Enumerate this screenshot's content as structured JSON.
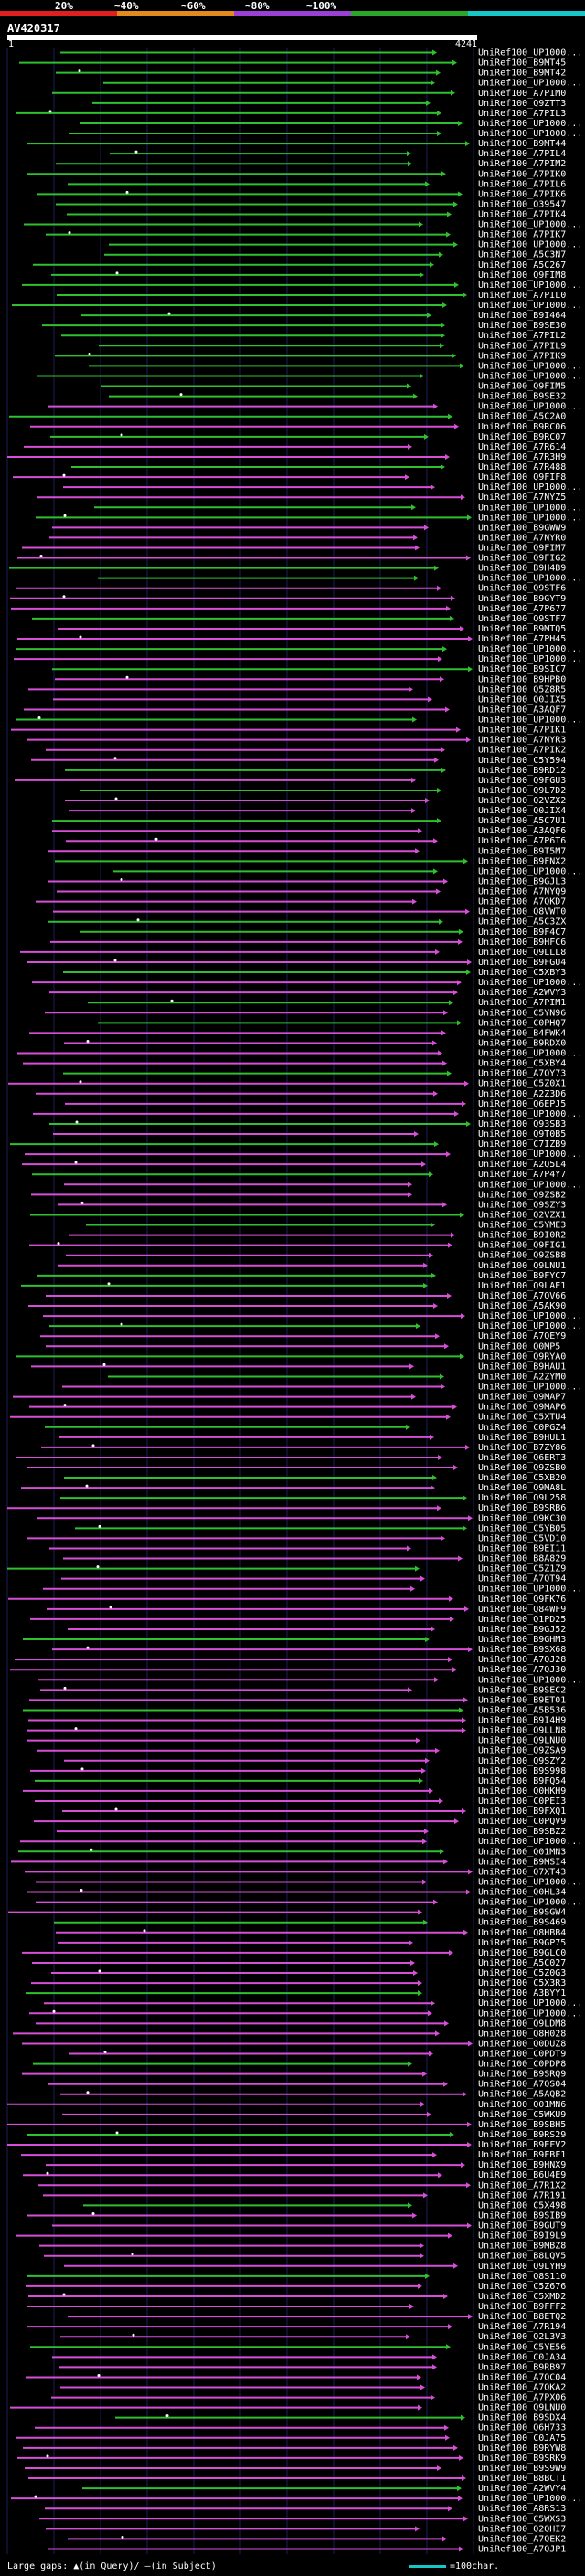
{
  "legend": {
    "labels": [
      "20%",
      "~40%",
      "~60%",
      "~80%",
      "~100%"
    ],
    "colors": [
      "#e11f1f",
      "#e38a1d",
      "#9b3fd5",
      "#2ca52c",
      "#17c6c6"
    ]
  },
  "query": {
    "name": "AV420317",
    "start": "1",
    "end": "4241"
  },
  "colors": {
    "magenta": "#d64fd6",
    "green": "#2fbf2f",
    "grid": "#1c1c5a",
    "background": "#000000"
  },
  "hits": [
    "UniRef100_UP1000...",
    "UniRef100_B9MT45",
    "UniRef100_B9MT42",
    "UniRef100_UP1000...",
    "UniRef100_A7PIM0",
    "UniRef100_Q9ZTT3",
    "UniRef100_A7PIL3",
    "UniRef100_UP1000...",
    "UniRef100_UP1000...",
    "UniRef100_B9MT44",
    "UniRef100_A7PIL4",
    "UniRef100_A7PIM2",
    "UniRef100_A7PIK0",
    "UniRef100_A7PIL6",
    "UniRef100_A7PIK6",
    "UniRef100_Q39547",
    "UniRef100_A7PIK4",
    "UniRef100_UP1000...",
    "UniRef100_A7PIK7",
    "UniRef100_UP1000...",
    "UniRef100_A5C3N7",
    "UniRef100_A5C267",
    "UniRef100_Q9FIM8",
    "UniRef100_UP1000...",
    "UniRef100_A7PIL0",
    "UniRef100_UP1000...",
    "UniRef100_B9I464",
    "UniRef100_B9SE30",
    "UniRef100_A7PIL2",
    "UniRef100_A7PIL9",
    "UniRef100_A7PIK9",
    "UniRef100_UP1000...",
    "UniRef100_UP1000...",
    "UniRef100_Q9FIM5",
    "UniRef100_B9SE32",
    "UniRef100_UP1000...",
    "UniRef100_A5C2A0",
    "UniRef100_B9RC06",
    "UniRef100_B9RC07",
    "UniRef100_A7R614",
    "UniRef100_A7R3H9",
    "UniRef100_A7R488",
    "UniRef100_Q9FIF8",
    "UniRef100_UP1000...",
    "UniRef100_A7NYZ5",
    "UniRef100_UP1000...",
    "UniRef100_UP1000...",
    "UniRef100_B9GWW9",
    "UniRef100_A7NYR0",
    "UniRef100_Q9FIM7",
    "UniRef100_Q9FIG2",
    "UniRef100_B9H4B9",
    "UniRef100_UP1000...",
    "UniRef100_Q9STF6",
    "UniRef100_B9GYT9",
    "UniRef100_A7P677",
    "UniRef100_Q9STF7",
    "UniRef100_B9MTQ5",
    "UniRef100_A7PH45",
    "UniRef100_UP1000...",
    "UniRef100_UP1000...",
    "UniRef100_B9SIC7",
    "UniRef100_B9HPB0",
    "UniRef100_Q5Z8R5",
    "UniRef100_Q0JIX5",
    "UniRef100_A3AQF7",
    "UniRef100_UP1000...",
    "UniRef100_A7PIK1",
    "UniRef100_A7NYR3",
    "UniRef100_A7PIK2",
    "UniRef100_C5Y594",
    "UniRef100_B9RD12",
    "UniRef100_Q9FGU3",
    "UniRef100_Q9L7D2",
    "UniRef100_Q2VZX2",
    "UniRef100_Q0JIX4",
    "UniRef100_A5C7U1",
    "UniRef100_A3AQF6",
    "UniRef100_A7P6T6",
    "UniRef100_B9T5M7",
    "UniRef100_B9FNX2",
    "UniRef100_UP1000...",
    "UniRef100_B9GJL3",
    "UniRef100_A7NYQ9",
    "UniRef100_A7QKD7",
    "UniRef100_Q8VWT0",
    "UniRef100_A5C3ZX",
    "UniRef100_B9F4C7",
    "UniRef100_B9HFC6",
    "UniRef100_Q9LLL8",
    "UniRef100_B9FGU4",
    "UniRef100_C5XBY3",
    "UniRef100_UP1000...",
    "UniRef100_A2WVY3",
    "UniRef100_A7PIM1",
    "UniRef100_C5YN96",
    "UniRef100_C0PHQ7",
    "UniRef100_B4FWK4",
    "UniRef100_B9RDX0",
    "UniRef100_UP1000...",
    "UniRef100_C5XBY4",
    "UniRef100_A7QY73",
    "UniRef100_C5Z0X1",
    "UniRef100_A2Z3D6",
    "UniRef100_Q6EPJ5",
    "UniRef100_UP1000...",
    "UniRef100_Q93SB3",
    "UniRef100_Q9T0B5",
    "UniRef100_C7IZB9",
    "UniRef100_UP1000...",
    "UniRef100_A2Q5L4",
    "UniRef100_A7P4Y7",
    "UniRef100_UP1000...",
    "UniRef100_Q9ZSB2",
    "UniRef100_Q9SZY3",
    "UniRef100_Q2VZX1",
    "UniRef100_C5YME3",
    "UniRef100_B9I0R2",
    "UniRef100_Q9FIG1",
    "UniRef100_Q9ZSB8",
    "UniRef100_Q9LNU1",
    "UniRef100_B9FYC7",
    "UniRef100_Q9LAE1",
    "UniRef100_A7QV66",
    "UniRef100_A5AK90",
    "UniRef100_UP1000...",
    "UniRef100_UP1000...",
    "UniRef100_A7QEY9",
    "UniRef100_Q0MP5",
    "UniRef100_Q9RYA0",
    "UniRef100_B9HAU1",
    "UniRef100_A2ZYM0",
    "UniRef100_UP1000...",
    "UniRef100_Q9MAP7",
    "UniRef100_Q9MAP6",
    "UniRef100_C5XTU4",
    "UniRef100_C0PGZ4",
    "UniRef100_B9HUL1",
    "UniRef100_B7ZY86",
    "UniRef100_Q6ERT3",
    "UniRef100_Q9ZSB0",
    "UniRef100_C5XB20",
    "UniRef100_Q9MA8L",
    "UniRef100_Q9L258",
    "UniRef100_B9SRB6",
    "UniRef100_Q9KC30",
    "UniRef100_C5YB05",
    "UniRef100_C5VD10",
    "UniRef100_B9EI11",
    "UniRef100_B8A829",
    "UniRef100_C5Z1Z9",
    "UniRef100_A7QT94",
    "UniRef100_UP1000...",
    "UniRef100_Q9FK76",
    "UniRef100_Q84WF9",
    "UniRef100_Q1PD25",
    "UniRef100_B9GJ52",
    "UniRef100_B9GHM3",
    "UniRef100_B9SX68",
    "UniRef100_A7QJ28",
    "UniRef100_A7QJ30",
    "UniRef100_UP1000...",
    "UniRef100_B9SEC2",
    "UniRef100_B9ET01",
    "UniRef100_A5B536",
    "UniRef100_B9I4H9",
    "UniRef100_Q9LLN8",
    "UniRef100_Q9LNU0",
    "UniRef100_Q9ZSA9",
    "UniRef100_Q9SZY2",
    "UniRef100_B9S998",
    "UniRef100_B9FQ54",
    "UniRef100_Q0HKH9",
    "UniRef100_C0PEI3",
    "UniRef100_B9FXQ1",
    "UniRef100_C0PQV9",
    "UniRef100_B9SBZ2",
    "UniRef100_UP1000...",
    "UniRef100_Q01MN3",
    "UniRef100_B9MSI4",
    "UniRef100_Q7XT43",
    "UniRef100_UP1000...",
    "UniRef100_Q0HL34",
    "UniRef100_UP1000...",
    "UniRef100_B9SGW4",
    "UniRef100_B9S469",
    "UniRef100_Q8HBB4",
    "UniRef100_B9GP75",
    "UniRef100_B9GLC0",
    "UniRef100_A5C027",
    "UniRef100_C5Z0G3",
    "UniRef100_C5X3R3",
    "UniRef100_A3BYY1",
    "UniRef100_UP1000...",
    "UniRef100_UP1000...",
    "UniRef100_Q9LDM8",
    "UniRef100_Q8H028",
    "UniRef100_Q0DUZ8",
    "UniRef100_C0PDT9",
    "UniRef100_C0PDP8",
    "UniRef100_B9SRQ9",
    "UniRef100_A7QS04",
    "UniRef100_A5AQB2",
    "UniRef100_Q01MN6",
    "UniRef100_C5WKU9",
    "UniRef100_B9SBH5",
    "UniRef100_B9RS29",
    "UniRef100_B9EFV2",
    "UniRef100_B9FBF1",
    "UniRef100_B9HNX9",
    "UniRef100_B6U4E9",
    "UniRef100_A7R1X2",
    "UniRef100_A7R191",
    "UniRef100_C5X498",
    "UniRef100_B9SIB9",
    "UniRef100_B9GUT9",
    "UniRef100_B9I9L9",
    "UniRef100_B9MBZ8",
    "UniRef100_B8LQV5",
    "UniRef100_Q9LYH9",
    "UniRef100_Q8S110",
    "UniRef100_C5Z676",
    "UniRef100_C5XMD2",
    "UniRef100_B9FFF2",
    "UniRef100_B8ETQ2",
    "UniRef100_A7R194",
    "UniRef100_Q2L3V3",
    "UniRef100_C5YE56",
    "UniRef100_C0JA34",
    "UniRef100_B9RB97",
    "UniRef100_A7QC04",
    "UniRef100_A7QKA2",
    "UniRef100_A7PX06",
    "UniRef100_Q9LNU0",
    "UniRef100_B9SDX4",
    "UniRef100_Q6H733",
    "UniRef100_C0JA75",
    "UniRef100_B9RYW8",
    "UniRef100_B9SRK9",
    "UniRef100_B9S9W9",
    "UniRef100_B8BCT1",
    "UniRef100_A2WVY4",
    "UniRef100_UP1000...",
    "UniRef100_A8RS13",
    "UniRef100_C5WXS3",
    "UniRef100_Q2QHI7",
    "UniRef100_A7QEK2",
    "UniRef100_A7QJP1"
  ],
  "footer": {
    "large_gaps_label": "Large gaps:",
    "query_gap_note": "▲(in Query)/",
    "subject_gap_note": "—(in Subject)",
    "scale_note": "=100char."
  }
}
